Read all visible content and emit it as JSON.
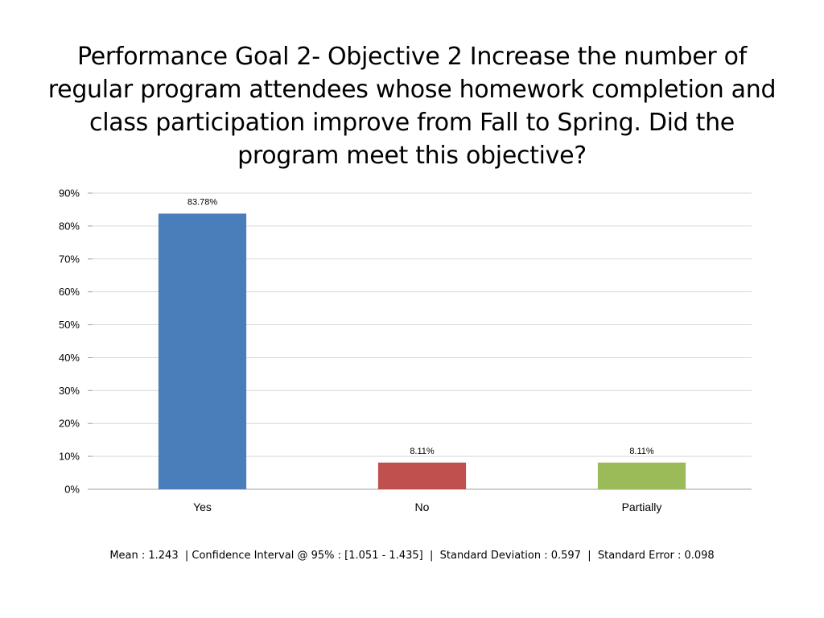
{
  "title_lines": [
    "Performance Goal 2- Objective 2 Increase the number of",
    "regular program attendees whose homework completion and",
    "class participation improve from Fall to Spring. Did the",
    "program meet this objective?"
  ],
  "chart_data": {
    "type": "bar",
    "title": "Performance Goal 2- Objective 2 Increase the number of regular program attendees whose homework completion and class participation improve from Fall to Spring. Did the program meet this objective?",
    "categories": [
      "Yes",
      "No",
      "Partially"
    ],
    "values": [
      83.78,
      8.11,
      8.11
    ],
    "data_labels": [
      "83.78%",
      "8.11%",
      "8.11%"
    ],
    "colors": [
      "#4A7EBB",
      "#C0504D",
      "#9BBB59"
    ],
    "ylim": [
      0,
      90
    ],
    "yticks": [
      "0%",
      "10%",
      "20%",
      "30%",
      "40%",
      "50%",
      "60%",
      "70%",
      "80%",
      "90%"
    ],
    "grid": true,
    "legend": "none",
    "xlabel": "",
    "ylabel": ""
  },
  "stats_text": "Mean : 1.243  | Confidence Interval @ 95% : [1.051 - 1.435]  |  Standard Deviation : 0.597  |  Standard Error : 0.098"
}
